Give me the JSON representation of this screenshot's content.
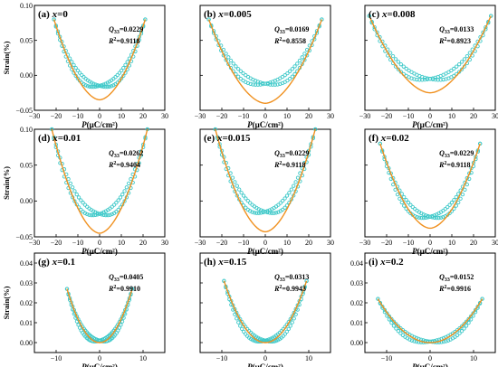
{
  "colors": {
    "measured": "#3cc8c8",
    "fit": "#f0901e",
    "axis": "#000000"
  },
  "chart_data": [
    {
      "type": "scatter",
      "label": "(a) ",
      "x_var": "x=0",
      "q33": "0.0229",
      "r2": "0.9118",
      "xlim": [
        -30,
        30
      ],
      "xticks": [
        -30,
        -20,
        -10,
        0,
        10,
        20,
        30
      ],
      "ylim": [
        -0.05,
        0.1
      ],
      "yticks": [
        -0.05,
        0.0,
        0.05,
        0.1
      ],
      "ytick_labels": [
        "−0.05",
        "0.00",
        "0.05",
        "0.10"
      ],
      "ylabel": "Strain(%)",
      "xlabel": "P(μC/cm²)",
      "pmax": 21,
      "smax": 0.08,
      "loop_min": -0.015,
      "fit_min": -0.035,
      "fit_power": 1.8
    },
    {
      "type": "scatter",
      "label": "(b) ",
      "x_var": "x=0.005",
      "q33": "0.0169",
      "r2": "0.8558",
      "xlim": [
        -30,
        30
      ],
      "xticks": [
        -30,
        -20,
        -10,
        0,
        10,
        20,
        30
      ],
      "ylim": [
        -0.05,
        0.1
      ],
      "yticks": [
        -0.05,
        0.0,
        0.05,
        0.1
      ],
      "ytick_labels": [
        "",
        "",
        "",
        ""
      ],
      "ylabel": "",
      "xlabel": "P(μC/cm²)",
      "pmax": 26,
      "smax": 0.08,
      "loop_min": -0.012,
      "fit_min": -0.04,
      "fit_power": 1.8
    },
    {
      "type": "scatter",
      "label": "(c) ",
      "x_var": "x=0.008",
      "q33": "0.0133",
      "r2": "0.8923",
      "xlim": [
        -30,
        30
      ],
      "xticks": [
        -30,
        -20,
        -10,
        0,
        10,
        20,
        30
      ],
      "ylim": [
        -0.05,
        0.1
      ],
      "yticks": [
        -0.05,
        0.0,
        0.05,
        0.1
      ],
      "ytick_labels": [
        "",
        "",
        "",
        ""
      ],
      "ylabel": "",
      "xlabel": "P(μC/cm²)",
      "pmax": 28,
      "smax": 0.085,
      "loop_min": -0.005,
      "fit_min": -0.025,
      "fit_power": 1.8
    },
    {
      "type": "scatter",
      "label": "(d) ",
      "x_var": "x=0.01",
      "q33": "0.0262",
      "r2": "0.9404",
      "xlim": [
        -30,
        30
      ],
      "xticks": [
        -30,
        -20,
        -10,
        0,
        10,
        20,
        30
      ],
      "ylim": [
        -0.05,
        0.1
      ],
      "yticks": [
        -0.05,
        0.0,
        0.05,
        0.1
      ],
      "ytick_labels": [
        "−0.05",
        "0.00",
        "0.05",
        "0.10"
      ],
      "ylabel": "Strain(%)",
      "xlabel": "P(μC/cm²)",
      "pmax": 22,
      "smax": 0.1,
      "loop_min": -0.018,
      "fit_min": -0.045,
      "fit_power": 1.8
    },
    {
      "type": "scatter",
      "label": "(e) ",
      "x_var": "x=0.015",
      "q33": "0.0229",
      "r2": "0.9118",
      "xlim": [
        -30,
        30
      ],
      "xticks": [
        -30,
        -20,
        -10,
        0,
        10,
        20,
        30
      ],
      "ylim": [
        -0.05,
        0.1
      ],
      "yticks": [
        -0.05,
        0.0,
        0.05,
        0.1
      ],
      "ytick_labels": [
        "",
        "",
        "",
        ""
      ],
      "ylabel": "",
      "xlabel": "P(μC/cm²)",
      "pmax": 23,
      "smax": 0.1,
      "loop_min": -0.015,
      "fit_min": -0.043,
      "fit_power": 1.8
    },
    {
      "type": "scatter",
      "label": "(f) ",
      "x_var": "x=0.02",
      "q33": "0.0229",
      "r2": "0.9118",
      "xlim": [
        -30,
        30
      ],
      "xticks": [
        -30,
        -20,
        -10,
        0,
        10,
        20,
        30
      ],
      "ylim": [
        -0.05,
        0.1
      ],
      "yticks": [
        -0.05,
        0.0,
        0.05,
        0.1
      ],
      "ytick_labels": [
        "",
        "",
        "",
        ""
      ],
      "ylabel": "",
      "xlabel": "P(μC/cm²)",
      "pmax": 23,
      "smax": 0.08,
      "loop_min": -0.022,
      "fit_min": -0.038,
      "fit_power": 1.8
    },
    {
      "type": "scatter",
      "label": "(g) ",
      "x_var": "x=0.1",
      "q33": "0.0405",
      "r2": "0.9910",
      "xlim": [
        -15,
        15
      ],
      "xticks": [
        -10,
        0,
        10
      ],
      "ylim": [
        -0.005,
        0.045
      ],
      "yticks": [
        0.0,
        0.01,
        0.02,
        0.03,
        0.04
      ],
      "ytick_labels": [
        "0.00",
        "0.01",
        "0.02",
        "0.03",
        "0.04"
      ],
      "ylabel": "Strain(%)",
      "xlabel": "P(μC/cm²)",
      "pmax": 7.5,
      "smax": 0.027,
      "loop_min": 0.001,
      "fit_min": 0.0,
      "fit_power": 2
    },
    {
      "type": "scatter",
      "label": "(h) ",
      "x_var": "x=0.15",
      "q33": "0.0313",
      "r2": "0.9943",
      "xlim": [
        -15,
        15
      ],
      "xticks": [
        -10,
        0,
        10
      ],
      "ylim": [
        -0.005,
        0.045
      ],
      "yticks": [
        0.0,
        0.01,
        0.02,
        0.03,
        0.04
      ],
      "ytick_labels": [
        "",
        "",
        "",
        "",
        ""
      ],
      "ylabel": "",
      "xlabel": "P(μC/cm²)",
      "pmax": 9.5,
      "smax": 0.031,
      "loop_min": 0.001,
      "fit_min": 0.0,
      "fit_power": 2
    },
    {
      "type": "scatter",
      "label": "(i) ",
      "x_var": "x=0.2",
      "q33": "0.0152",
      "r2": "0.9916",
      "xlim": [
        -15,
        15
      ],
      "xticks": [
        -10,
        0,
        10
      ],
      "ylim": [
        -0.005,
        0.045
      ],
      "yticks": [
        0.0,
        0.01,
        0.02,
        0.03,
        0.04
      ],
      "ytick_labels": [
        "0.00",
        "0.01",
        "0.02",
        "0.03",
        "0.04"
      ],
      "ylabel": "",
      "xlabel": "P(μC/cm²)",
      "pmax": 12,
      "smax": 0.022,
      "loop_min": 0.0005,
      "fit_min": 0.0,
      "fit_power": 2
    }
  ]
}
